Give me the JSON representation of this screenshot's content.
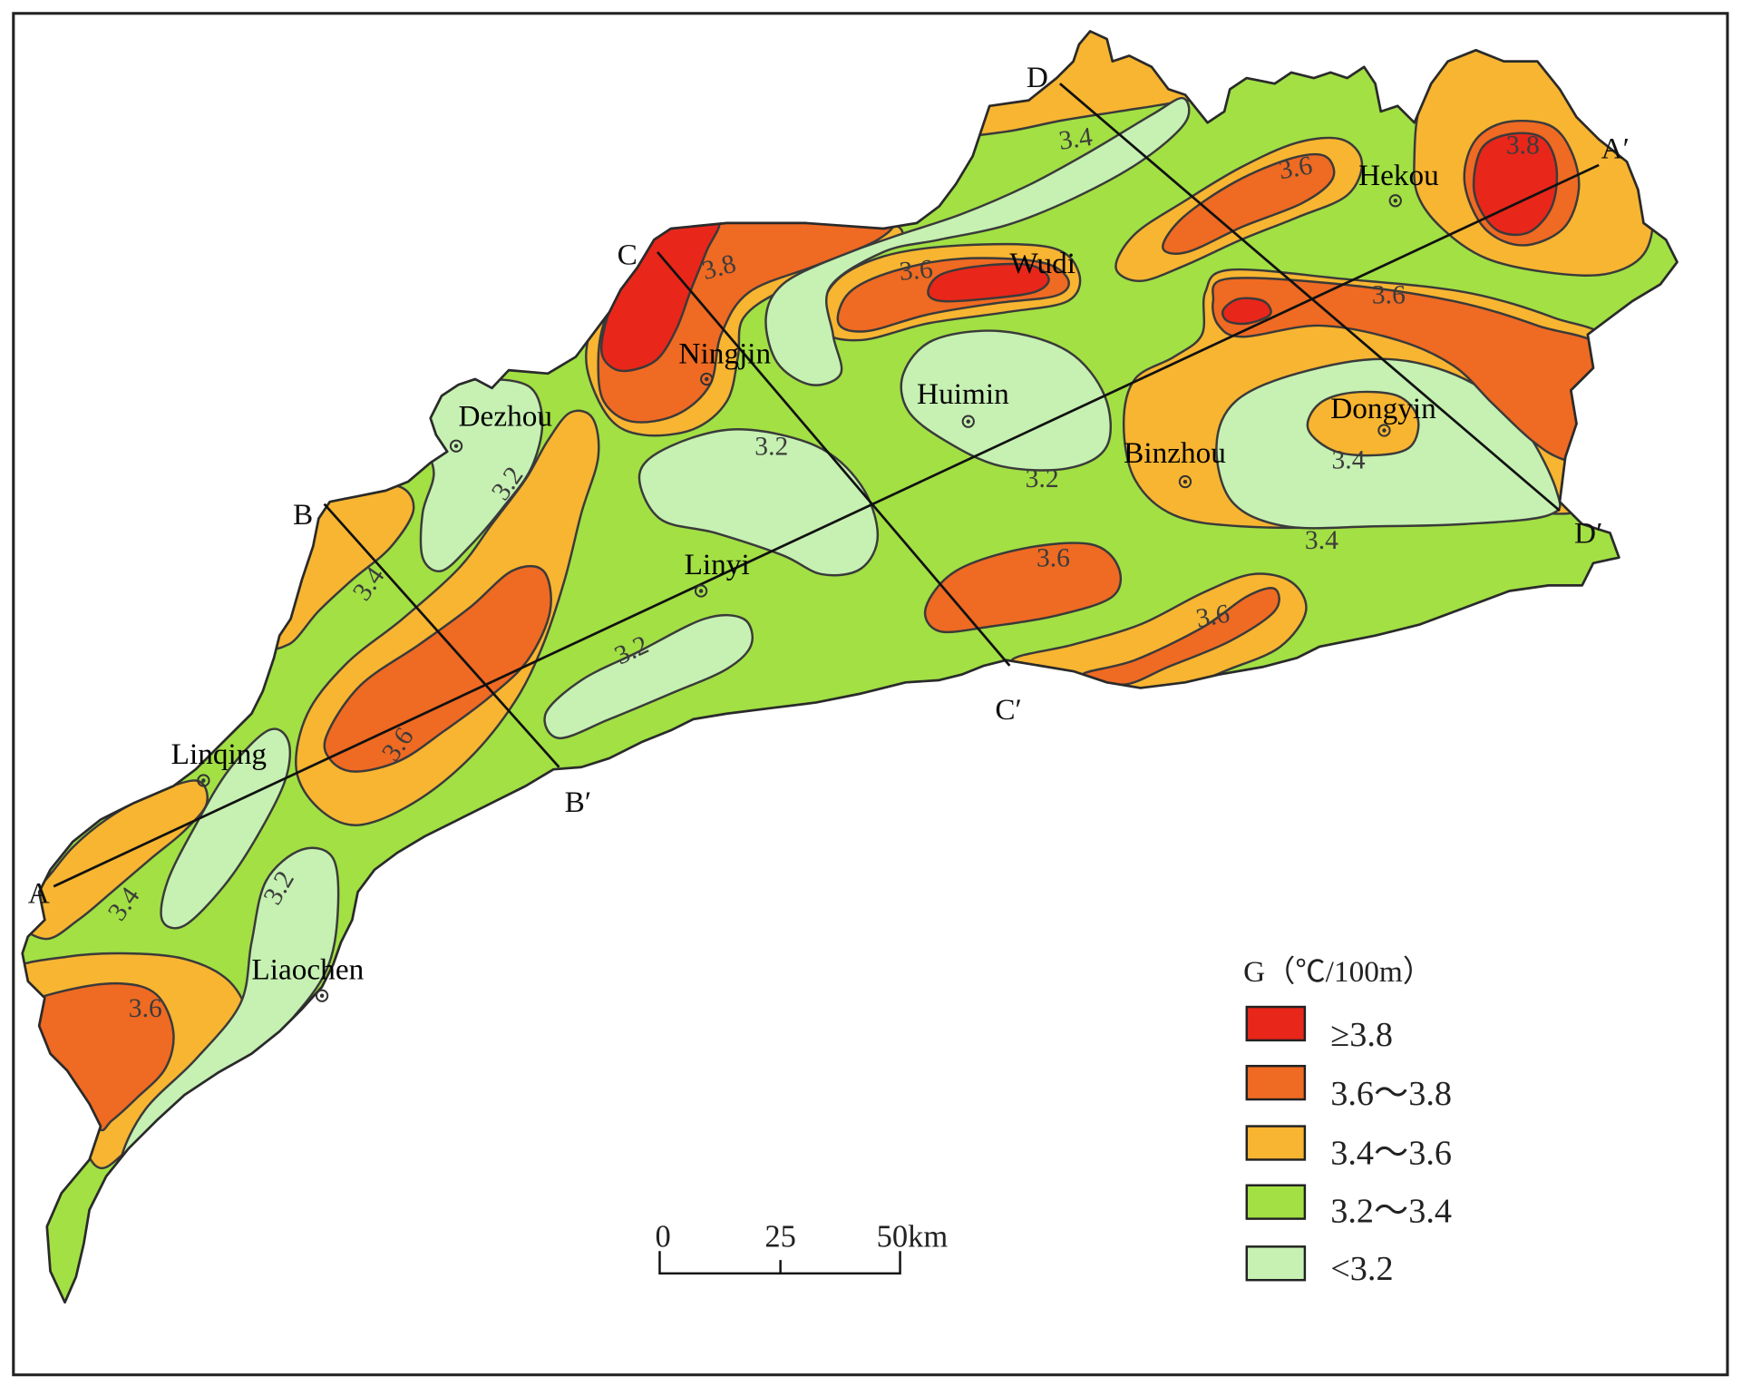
{
  "map": {
    "cities": [
      "Dezhou",
      "Ningjin",
      "Wudi",
      "Hekou",
      "Huimin",
      "Dongyin",
      "Binzhou",
      "Linyi",
      "Linqing",
      "Liaochen"
    ],
    "profile_labels": [
      "A",
      "A′",
      "B",
      "B′",
      "C",
      "C′",
      "D",
      "D′"
    ],
    "contour_labels": [
      "3.4",
      "3.8",
      "3.6",
      "3.6",
      "3.8",
      "3.6",
      "3.2",
      "3.2",
      "3.4",
      "3.4",
      "3.6",
      "3.6",
      "3.2",
      "3.4",
      "3.2",
      "3.6",
      "3.4",
      "3.2",
      "3.6"
    ]
  },
  "legend": {
    "title": "G（℃/100m）",
    "items": [
      {
        "label": "≥3.8",
        "color": "#e8261a"
      },
      {
        "label": "3.6～3.8",
        "color": "#ef6a22"
      },
      {
        "label": "3.4～3.6",
        "color": "#f7b531"
      },
      {
        "label": "3.2～3.4",
        "color": "#a2e044"
      },
      {
        "label": "<3.2",
        "color": "#c6f1b2"
      }
    ]
  },
  "scale_bar": {
    "ticks": [
      "0",
      "25",
      "50km"
    ]
  }
}
